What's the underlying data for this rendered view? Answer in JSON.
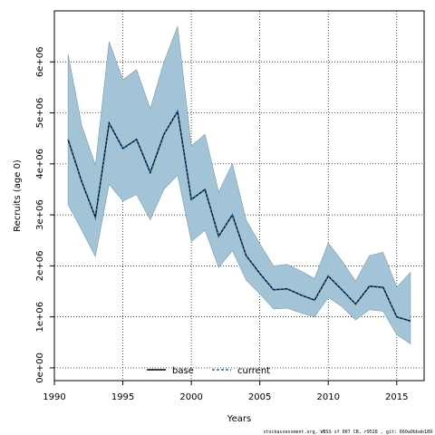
{
  "chart_data": {
    "type": "line",
    "xlabel": "Years",
    "ylabel": "Recruits (age 0)",
    "xlim": [
      1990,
      2017
    ],
    "ylim": [
      -250000,
      7000000
    ],
    "x_ticks": [
      1990,
      1995,
      2000,
      2005,
      2010,
      2015
    ],
    "y_ticks": [
      0,
      1000000,
      2000000,
      3000000,
      4000000,
      5000000,
      6000000
    ],
    "y_tick_labels": [
      "0e+00",
      "1e+06",
      "2e+06",
      "3e+06",
      "4e+06",
      "5e+06",
      "6e+06"
    ],
    "grid": true,
    "legend_position": "bottom-center",
    "x": [
      1991,
      1992,
      1993,
      1994,
      1995,
      1996,
      1997,
      1998,
      1999,
      2000,
      2001,
      2002,
      2003,
      2004,
      2005,
      2006,
      2007,
      2008,
      2009,
      2010,
      2011,
      2012,
      2013,
      2014,
      2015,
      2016
    ],
    "band": {
      "color": "#a3c4d6",
      "upper": [
        6150000,
        4750000,
        3980000,
        6400000,
        5650000,
        5850000,
        5080000,
        6000000,
        6700000,
        4350000,
        4580000,
        3450000,
        4000000,
        2900000,
        2430000,
        2000000,
        2030000,
        1900000,
        1750000,
        2450000,
        2100000,
        1700000,
        2200000,
        2270000,
        1580000,
        1870000
      ],
      "lower": [
        3200000,
        2700000,
        2180000,
        3600000,
        3270000,
        3400000,
        2900000,
        3500000,
        3780000,
        2480000,
        2700000,
        1970000,
        2300000,
        1720000,
        1450000,
        1160000,
        1170000,
        1080000,
        1000000,
        1380000,
        1200000,
        940000,
        1140000,
        1110000,
        650000,
        470000
      ]
    },
    "series": [
      {
        "name": "base",
        "color": "#000000",
        "style": "solid",
        "values": [
          4480000,
          3650000,
          2950000,
          4800000,
          4300000,
          4480000,
          3830000,
          4580000,
          5030000,
          3300000,
          3500000,
          2580000,
          3000000,
          2200000,
          1850000,
          1530000,
          1550000,
          1430000,
          1330000,
          1800000,
          1530000,
          1250000,
          1600000,
          1580000,
          1000000,
          920000
        ]
      },
      {
        "name": "current",
        "color": "#1f6faf",
        "style": "dashed",
        "values": [
          4480000,
          3650000,
          2950000,
          4800000,
          4300000,
          4480000,
          3830000,
          4580000,
          5030000,
          3300000,
          3500000,
          2580000,
          3000000,
          2200000,
          1850000,
          1530000,
          1550000,
          1430000,
          1330000,
          1800000,
          1530000,
          1250000,
          1600000,
          1580000,
          1000000,
          920000
        ]
      }
    ]
  },
  "footer_text": "stockassessment.org, WBSS sf 007 CB, r9528 , git: 660a0bbab189"
}
